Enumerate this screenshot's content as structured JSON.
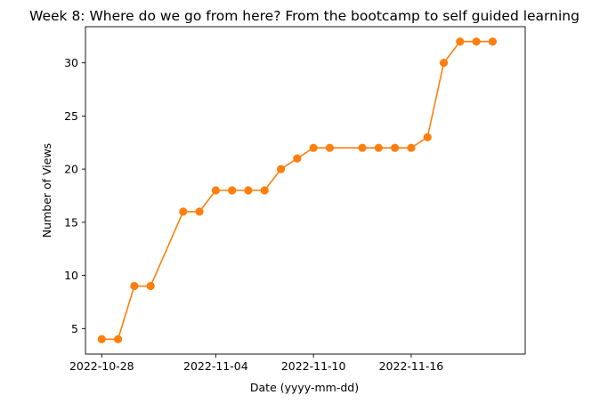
{
  "chart_data": {
    "type": "line",
    "title": "Week 8: Where do we go from here? From the bootcamp to self guided learning",
    "xlabel": "Date (yyyy-mm-dd)",
    "ylabel": "Number of Views",
    "x_tick_labels": [
      "2022-10-28",
      "2022-11-04",
      "2022-11-10",
      "2022-11-16"
    ],
    "y_tick_labels": [
      "5",
      "10",
      "15",
      "20",
      "25",
      "30"
    ],
    "xlim": [
      "2022-10-27",
      "2022-11-23"
    ],
    "ylim": [
      2.6,
      33.4
    ],
    "grid": false,
    "series": [
      {
        "color": "#ff7f0e",
        "marker": "circle",
        "points": [
          {
            "x": "2022-10-28",
            "y": 4
          },
          {
            "x": "2022-10-29",
            "y": 4
          },
          {
            "x": "2022-10-30",
            "y": 9
          },
          {
            "x": "2022-10-31",
            "y": 9
          },
          {
            "x": "2022-11-02",
            "y": 16
          },
          {
            "x": "2022-11-03",
            "y": 16
          },
          {
            "x": "2022-11-04",
            "y": 18
          },
          {
            "x": "2022-11-05",
            "y": 18
          },
          {
            "x": "2022-11-06",
            "y": 18
          },
          {
            "x": "2022-11-07",
            "y": 18
          },
          {
            "x": "2022-11-08",
            "y": 20
          },
          {
            "x": "2022-11-09",
            "y": 21
          },
          {
            "x": "2022-11-10",
            "y": 22
          },
          {
            "x": "2022-11-11",
            "y": 22
          },
          {
            "x": "2022-11-13",
            "y": 22
          },
          {
            "x": "2022-11-14",
            "y": 22
          },
          {
            "x": "2022-11-15",
            "y": 22
          },
          {
            "x": "2022-11-16",
            "y": 22
          },
          {
            "x": "2022-11-17",
            "y": 23
          },
          {
            "x": "2022-11-18",
            "y": 30
          },
          {
            "x": "2022-11-19",
            "y": 32
          },
          {
            "x": "2022-11-20",
            "y": 32
          },
          {
            "x": "2022-11-21",
            "y": 32
          }
        ]
      }
    ]
  }
}
